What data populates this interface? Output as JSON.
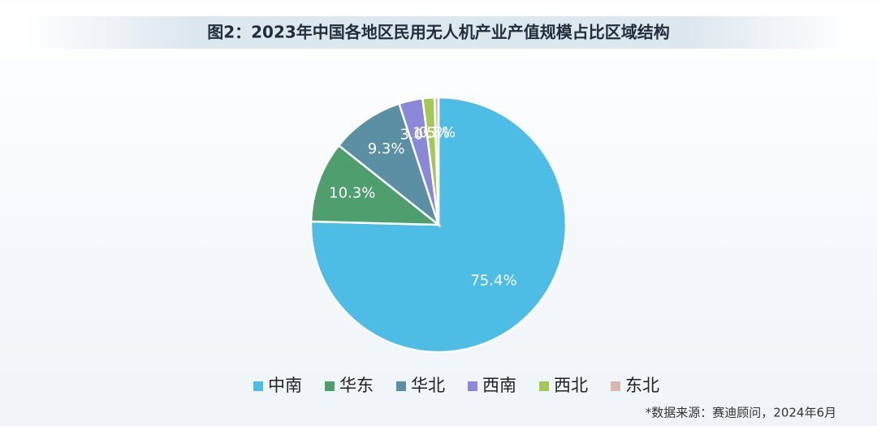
{
  "chart_data": {
    "type": "pie",
    "title": "图2：2023年中国各地区民用无人机产业产值规模占比区域结构",
    "categories": [
      "中南",
      "华东",
      "华北",
      "西南",
      "西北",
      "东北"
    ],
    "values": [
      75.4,
      10.3,
      9.3,
      3.0,
      1.5,
      0.5
    ],
    "value_labels": [
      "75.4%",
      "10.3%",
      "9.3%",
      "3.0%",
      "1.5%",
      "0.5%"
    ],
    "colors": [
      "#4dbde6",
      "#4e9e6e",
      "#5b8fa3",
      "#8b87d9",
      "#a3c858",
      "#d9b7b0"
    ],
    "legend": "bottom",
    "source": "*数据来源：赛迪顾问，2024年6月"
  }
}
